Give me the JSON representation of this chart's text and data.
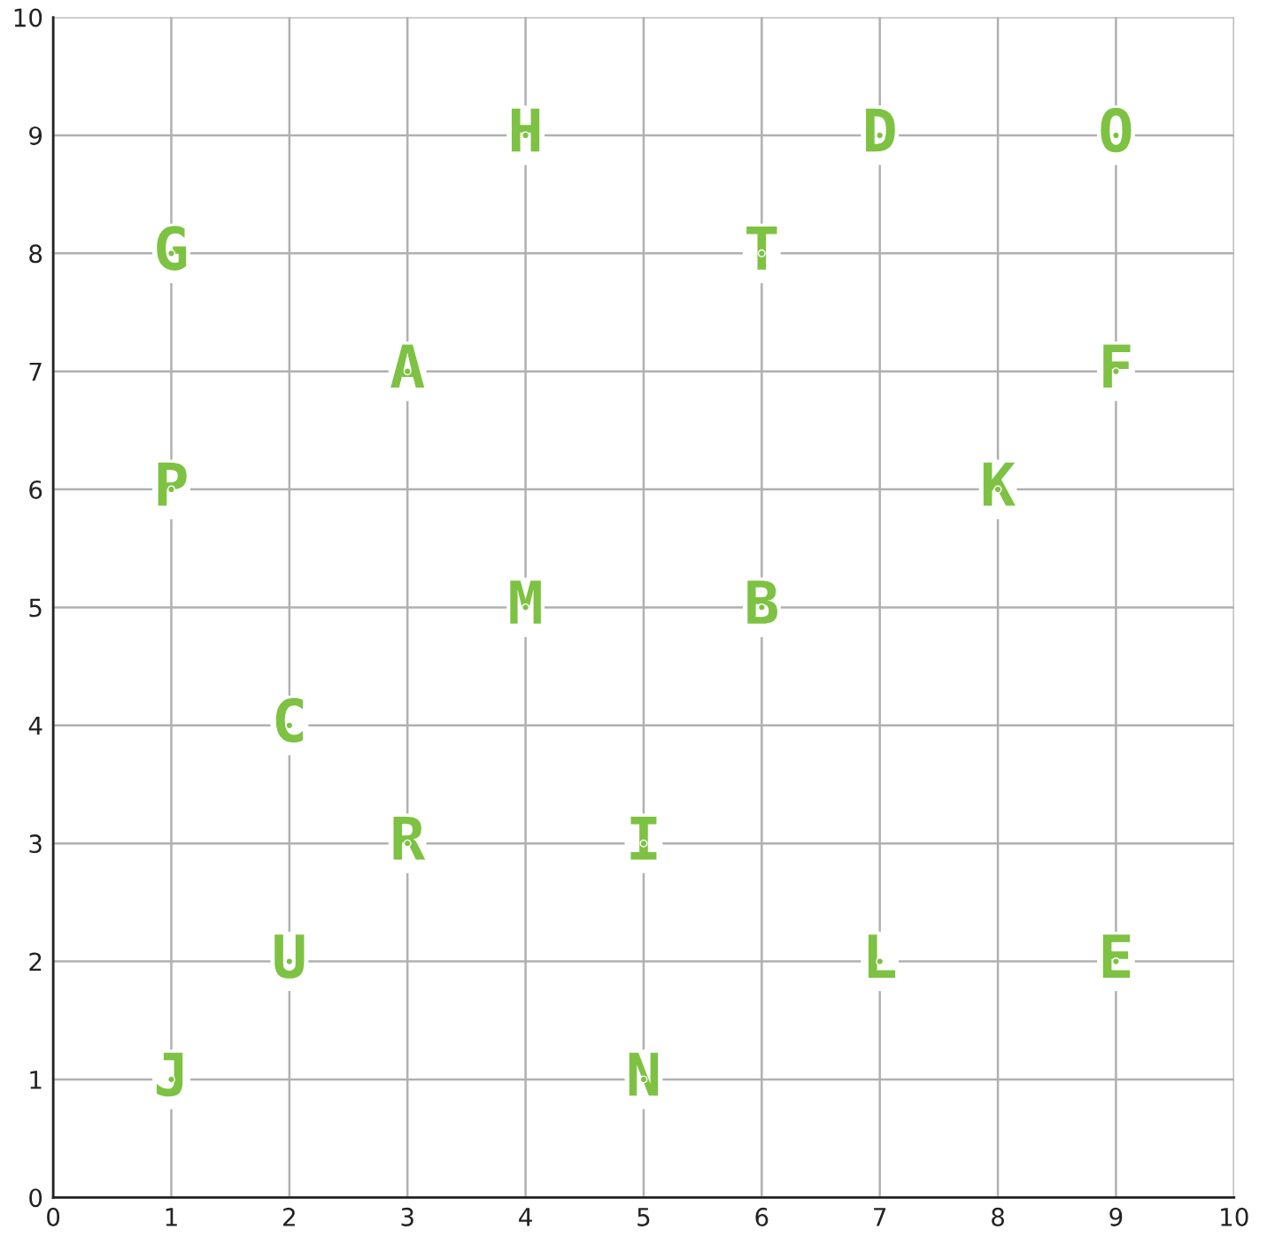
{
  "chart_data": {
    "type": "scatter",
    "x": [
      4,
      7,
      9,
      1,
      6,
      3,
      9,
      1,
      8,
      4,
      6,
      2,
      3,
      5,
      2,
      7,
      9,
      1,
      5
    ],
    "series": [
      {
        "color": "#7dc242",
        "values": [
          9,
          9,
          9,
          8,
          8,
          7,
          7,
          6,
          6,
          5,
          5,
          4,
          3,
          3,
          2,
          2,
          2,
          1,
          1
        ],
        "value_labels": [
          "H",
          "D",
          "O",
          "G",
          "T",
          "A",
          "F",
          "P",
          "K",
          "M",
          "B",
          "C",
          "R",
          "I",
          "U",
          "L",
          "E",
          "J",
          "N"
        ]
      }
    ],
    "xlim": [
      0,
      10
    ],
    "ylim": [
      0,
      10
    ],
    "xticks": [
      0,
      1,
      2,
      3,
      4,
      5,
      6,
      7,
      8,
      9,
      10
    ],
    "yticks": [
      0,
      1,
      2,
      3,
      4,
      5,
      6,
      7,
      8,
      9,
      10
    ],
    "grid": true,
    "legend": false
  }
}
